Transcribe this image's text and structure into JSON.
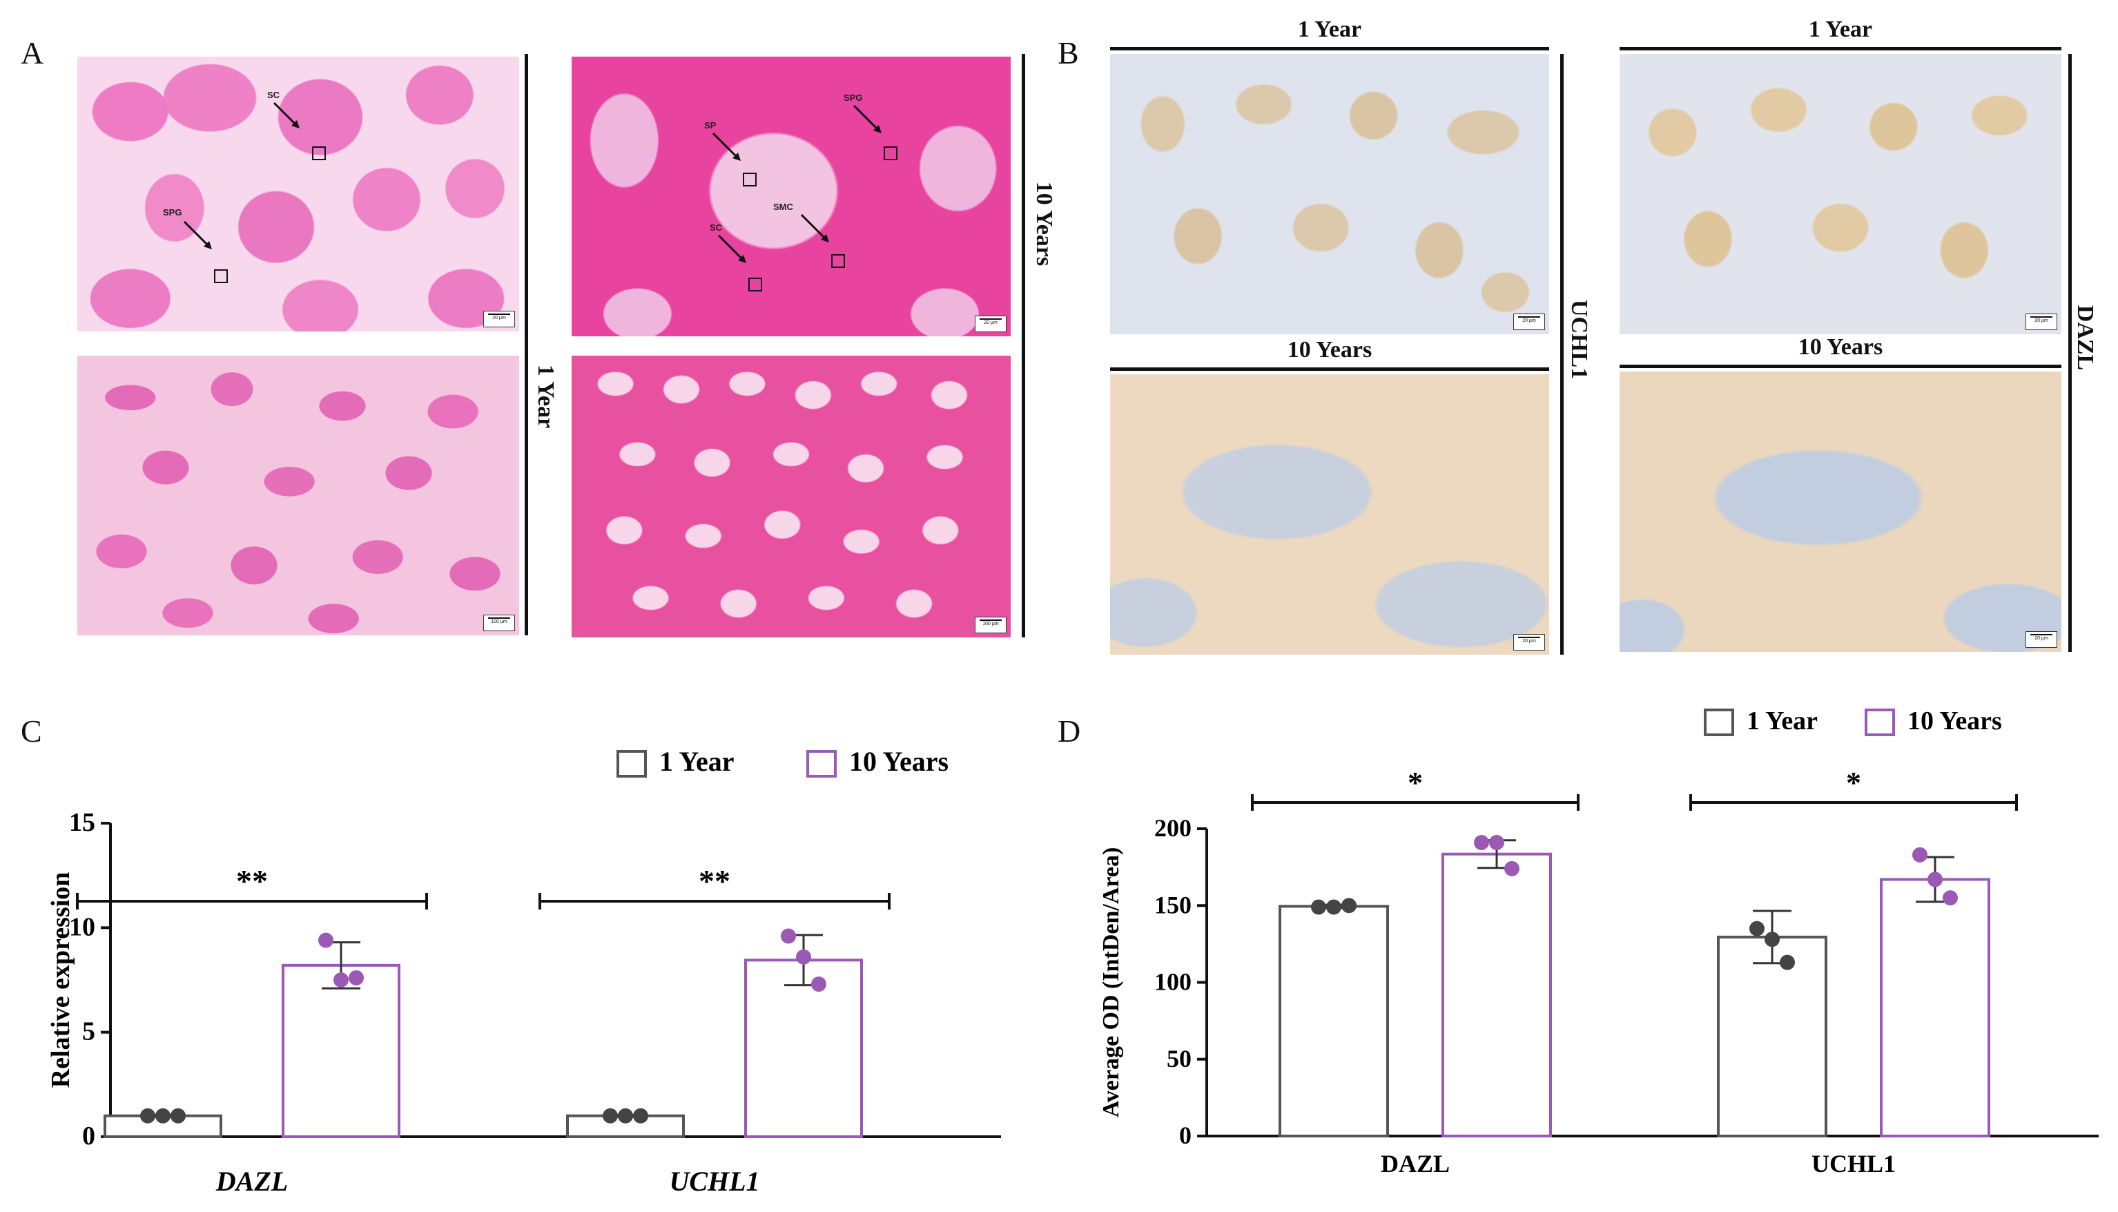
{
  "panels": {
    "a": "A",
    "b": "B",
    "c": "C",
    "d": "D"
  },
  "panel_a": {
    "label_1y": "1 Year",
    "label_10y": "10 Years",
    "annotations_1y": [
      "SC",
      "SPG"
    ],
    "annotations_10y": [
      "SP",
      "SPG",
      "SMC",
      "SC"
    ],
    "scale_top": "20 μm",
    "scale_bottom": "100 μm",
    "stain_colors": {
      "he_light": "#f3a9d3",
      "he_bright": "#ea5fb8",
      "he_lumen": "#e6f4ee"
    }
  },
  "panel_b": {
    "top_left": "1 Year",
    "top_right": "1 Year",
    "bottom_left": "10 Years",
    "bottom_right": "10 Years",
    "marker_left": "UCHL1",
    "marker_right": "DAZL",
    "scale": "20 μm",
    "stain_colors": {
      "ihc_blue": "#b9c5dd",
      "ihc_brown": "#d9b48a",
      "ihc_bg": "#ece8e3"
    }
  },
  "chart_data": [
    {
      "type": "bar",
      "panel": "C",
      "categories": [
        "DAZL",
        "UCHL1"
      ],
      "categories_italic": true,
      "series": [
        {
          "name": "1   Year",
          "color": "#555555",
          "values": [
            1.0,
            1.0
          ],
          "errors": [
            0.05,
            0.05
          ],
          "points": [
            [
              1.0,
              1.0,
              1.0
            ],
            [
              1.0,
              1.0,
              1.0
            ]
          ]
        },
        {
          "name": "10 Years",
          "color": "#9b59b6",
          "values": [
            8.2,
            8.45
          ],
          "errors": [
            1.1,
            1.2
          ],
          "points": [
            [
              9.4,
              7.5,
              7.6
            ],
            [
              9.6,
              8.6,
              7.3
            ]
          ]
        }
      ],
      "ylabel": "Relative expression",
      "xlabel": "",
      "ylim": [
        0,
        15
      ],
      "yticks": [
        0,
        5,
        10,
        15
      ],
      "significance": [
        "**",
        "**"
      ],
      "legend": "top-right"
    },
    {
      "type": "bar",
      "panel": "D",
      "categories": [
        "DAZL",
        "UCHL1"
      ],
      "categories_italic": false,
      "series": [
        {
          "name": "1 Year",
          "color": "#555555",
          "values": [
            149.5,
            129.5
          ],
          "errors": [
            1.0,
            17.0
          ],
          "points": [
            [
              149,
              149,
              150
            ],
            [
              135,
              128,
              113
            ]
          ]
        },
        {
          "name": "10 Years",
          "color": "#9b59b6",
          "values": [
            183.5,
            167.0
          ],
          "errors": [
            9.0,
            14.5
          ],
          "points": [
            [
              191,
              191,
              174
            ],
            [
              183,
              167,
              155
            ]
          ]
        }
      ],
      "ylabel": "Average OD (IntDen/Area)",
      "xlabel": "",
      "ylim": [
        0,
        200
      ],
      "yticks": [
        0,
        50,
        100,
        150,
        200
      ],
      "significance": [
        "*",
        "*"
      ],
      "legend": "top-right"
    }
  ]
}
